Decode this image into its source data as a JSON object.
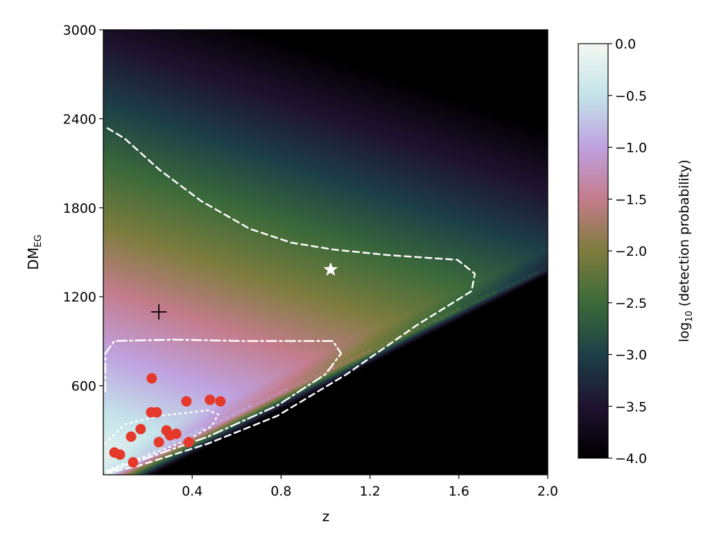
{
  "chart_data": {
    "type": "heatmap",
    "xlabel": "z",
    "ylabel_main": "DM",
    "ylabel_sub": "EG",
    "xlim": [
      0,
      2.0
    ],
    "ylim": [
      0,
      3000
    ],
    "xticks": [
      "0.4",
      "0.8",
      "1.2",
      "1.6",
      "2.0"
    ],
    "xtick_values": [
      0.4,
      0.8,
      1.2,
      1.6,
      2.0
    ],
    "yticks": [
      "600",
      "1200",
      "1800",
      "2400",
      "3000"
    ],
    "ytick_values": [
      600,
      1200,
      1800,
      2400,
      3000
    ],
    "colorbar": {
      "label_prefix": "log",
      "label_sub": "10",
      "label_suffix": " (detection probability)",
      "range": [
        -4.0,
        0.0
      ],
      "ticks": [
        "0.0",
        "−0.5",
        "−1.0",
        "−1.5",
        "−2.0",
        "−2.5",
        "−3.0",
        "−3.5",
        "−4.0"
      ],
      "tick_values": [
        0.0,
        -0.5,
        -1.0,
        -1.5,
        -2.0,
        -2.5,
        -3.0,
        -3.5,
        -4.0
      ],
      "colormap_stops": [
        [
          -4.0,
          "#000000"
        ],
        [
          -3.5,
          "#1f1330"
        ],
        [
          -3.0,
          "#1d4048"
        ],
        [
          -2.5,
          "#3d6b3a"
        ],
        [
          -2.0,
          "#7e7d3e"
        ],
        [
          -1.5,
          "#c47c8c"
        ],
        [
          -1.0,
          "#bfa2e0"
        ],
        [
          -0.5,
          "#c4e4ea"
        ],
        [
          0.0,
          "#f4f8f2"
        ]
      ]
    },
    "contours": [
      {
        "name": "dashed",
        "style": "dashed",
        "points": [
          [
            0.019,
            2337
          ],
          [
            0.097,
            2266
          ],
          [
            0.253,
            2056
          ],
          [
            0.44,
            1846
          ],
          [
            0.658,
            1659
          ],
          [
            0.846,
            1565
          ],
          [
            1.033,
            1519
          ],
          [
            1.283,
            1481
          ],
          [
            1.594,
            1449
          ],
          [
            1.672,
            1355
          ],
          [
            1.657,
            1238
          ],
          [
            1.407,
            1005
          ],
          [
            1.095,
            678
          ],
          [
            0.783,
            397
          ],
          [
            0.471,
            210
          ],
          [
            0.159,
            61
          ],
          [
            0.019,
            14
          ]
        ]
      },
      {
        "name": "dash-dot",
        "style": "dashdot",
        "points": [
          [
            0.009,
            560
          ],
          [
            0.009,
            818
          ],
          [
            0.05,
            902
          ],
          [
            0.315,
            911
          ],
          [
            0.627,
            902
          ],
          [
            1.033,
            902
          ],
          [
            1.07,
            818
          ],
          [
            1.0,
            678
          ],
          [
            0.783,
            467
          ],
          [
            0.471,
            257
          ],
          [
            0.159,
            93
          ],
          [
            0.019,
            23
          ]
        ]
      },
      {
        "name": "dotted",
        "style": "dotted",
        "points": [
          [
            0.009,
            210
          ],
          [
            0.097,
            341
          ],
          [
            0.253,
            397
          ],
          [
            0.471,
            435
          ],
          [
            0.518,
            407
          ],
          [
            0.487,
            327
          ],
          [
            0.378,
            234
          ],
          [
            0.222,
            140
          ],
          [
            0.066,
            61
          ],
          [
            0.009,
            23
          ]
        ]
      }
    ],
    "scatter_points": [
      [
        0.218,
        650
      ],
      [
        0.374,
        495
      ],
      [
        0.48,
        505
      ],
      [
        0.527,
        495
      ],
      [
        0.215,
        421
      ],
      [
        0.24,
        421
      ],
      [
        0.168,
        308
      ],
      [
        0.125,
        257
      ],
      [
        0.284,
        299
      ],
      [
        0.3,
        266
      ],
      [
        0.328,
        276
      ],
      [
        0.25,
        220
      ],
      [
        0.384,
        220
      ],
      [
        0.05,
        150
      ],
      [
        0.075,
        136
      ],
      [
        0.134,
        84
      ]
    ],
    "scatter_color": "#e5392b",
    "star_marker": [
      1.023,
      1383
    ],
    "plus_marker": [
      0.25,
      1098
    ]
  }
}
